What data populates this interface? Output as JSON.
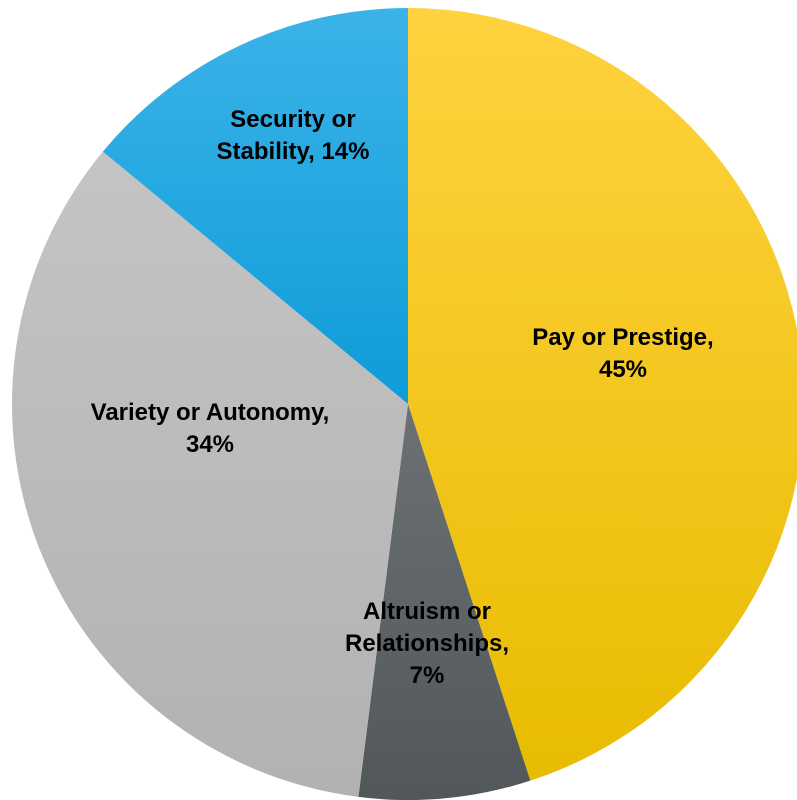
{
  "chart_data": {
    "type": "pie",
    "title": "",
    "start_angle_deg": 0,
    "direction": "clockwise",
    "slices": [
      {
        "label_lines": [
          "Pay or Prestige,",
          "45%"
        ],
        "category": "Pay or Prestige",
        "value": 45,
        "color": "#FFD000",
        "gradient_top": "#FFD23F",
        "gradient_bottom": "#E8BC00"
      },
      {
        "label_lines": [
          "Altruism or",
          "Relationships,",
          "7%"
        ],
        "category": "Altruism or Relationships",
        "value": 7,
        "color": "#5E6366",
        "gradient_top": "#6C7174",
        "gradient_bottom": "#52575A"
      },
      {
        "label_lines": [
          "Variety or Autonomy,",
          "34%"
        ],
        "category": "Variety or Autonomy",
        "value": 34,
        "color": "#BBBBBB",
        "gradient_top": "#C4C4C4",
        "gradient_bottom": "#B2B2B2"
      },
      {
        "label_lines": [
          "Security or",
          "Stability, 14%"
        ],
        "category": "Security or Stability",
        "value": 14,
        "color": "#1AA7E1",
        "gradient_top": "#3BB3E8",
        "gradient_bottom": "#0E9CD8"
      }
    ]
  }
}
